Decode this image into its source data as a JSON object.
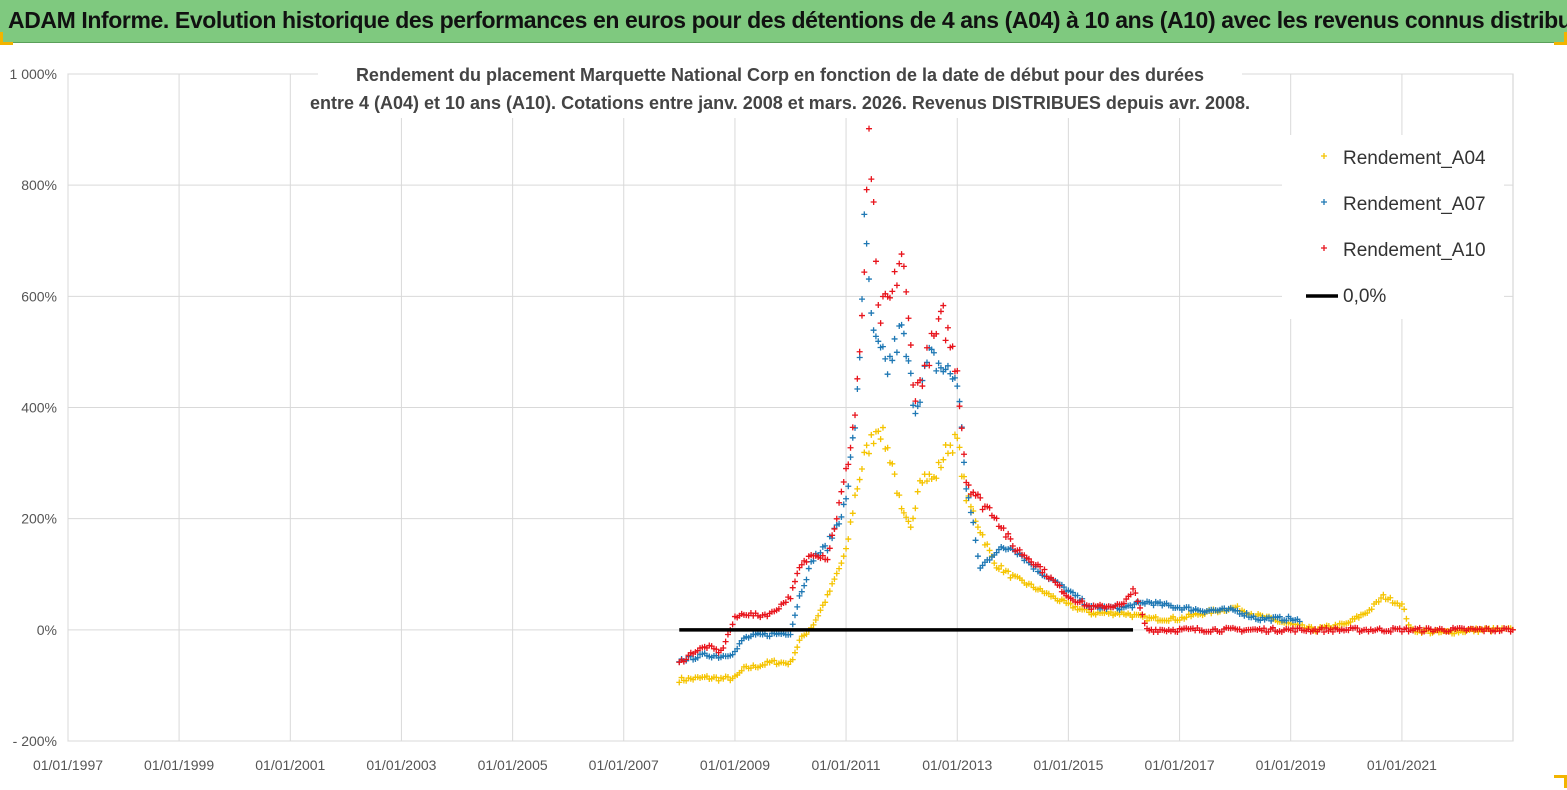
{
  "header": {
    "title": "ADAM Informe. Evolution historique des performances en euros pour des détentions de 4 ans (A04) à 10 ans (A10) avec les revenus connus distribués"
  },
  "chart_data": {
    "type": "scatter",
    "title_lines": [
      "Rendement du placement Marquette National Corp en fonction de la date de début pour des durées",
      "entre 4 (A04) et 10 ans (A10). Cotations entre janv. 2008 et mars. 2026. Revenus DISTRIBUES depuis avr. 2008."
    ],
    "xlabel": "",
    "ylabel": "",
    "x_ticks": [
      "01/01/1997",
      "01/01/1999",
      "01/01/2001",
      "01/01/2003",
      "01/01/2005",
      "01/01/2007",
      "01/01/2009",
      "01/01/2011",
      "01/01/2013",
      "01/01/2015",
      "01/01/2017",
      "01/01/2019",
      "01/01/2021"
    ],
    "x_range": [
      "1997-01-01",
      "2023-01-01"
    ],
    "y_ticks": [
      -200,
      0,
      200,
      400,
      600,
      800,
      1000
    ],
    "y_tick_labels": [
      "- 200%",
      "0%",
      "200%",
      "400%",
      "600%",
      "800%",
      "1 000%"
    ],
    "ylim": [
      -200,
      1000
    ],
    "grid": true,
    "legend_position": "top-right",
    "series": [
      {
        "name": "Rendement_A04",
        "color": "#f5c400",
        "marker": "+",
        "points": [
          [
            "2008-01-01",
            -90
          ],
          [
            "2008-04-01",
            -88
          ],
          [
            "2008-07-01",
            -86
          ],
          [
            "2008-10-01",
            -88
          ],
          [
            "2009-01-01",
            -87
          ],
          [
            "2009-03-01",
            -70
          ],
          [
            "2009-06-01",
            -65
          ],
          [
            "2009-09-01",
            -58
          ],
          [
            "2010-01-01",
            -60
          ],
          [
            "2010-03-01",
            -20
          ],
          [
            "2010-06-01",
            10
          ],
          [
            "2010-09-01",
            60
          ],
          [
            "2011-01-01",
            140
          ],
          [
            "2011-03-01",
            240
          ],
          [
            "2011-05-01",
            310
          ],
          [
            "2011-08-01",
            370
          ],
          [
            "2011-11-01",
            300
          ],
          [
            "2012-01-01",
            210
          ],
          [
            "2012-03-01",
            180
          ],
          [
            "2012-05-01",
            280
          ],
          [
            "2012-08-01",
            270
          ],
          [
            "2012-11-01",
            330
          ],
          [
            "2013-01-01",
            340
          ],
          [
            "2013-03-01",
            240
          ],
          [
            "2013-06-01",
            180
          ],
          [
            "2013-09-01",
            120
          ],
          [
            "2014-01-01",
            95
          ],
          [
            "2014-06-01",
            75
          ],
          [
            "2015-01-01",
            45
          ],
          [
            "2015-06-01",
            30
          ],
          [
            "2016-01-01",
            30
          ],
          [
            "2016-06-01",
            20
          ],
          [
            "2017-01-01",
            20
          ],
          [
            "2017-06-01",
            30
          ],
          [
            "2018-01-01",
            40
          ],
          [
            "2018-06-01",
            25
          ],
          [
            "2019-01-01",
            10
          ],
          [
            "2019-06-01",
            0
          ],
          [
            "2020-01-01",
            10
          ],
          [
            "2020-06-01",
            35
          ],
          [
            "2020-09-01",
            60
          ],
          [
            "2021-01-01",
            45
          ],
          [
            "2021-03-01",
            0
          ],
          [
            "2021-09-01",
            -5
          ],
          [
            "2022-06-01",
            0
          ],
          [
            "2022-12-31",
            0
          ]
        ]
      },
      {
        "name": "Rendement_A07",
        "color": "#1f78b4",
        "marker": "+",
        "points": [
          [
            "2008-01-01",
            -55
          ],
          [
            "2008-04-01",
            -50
          ],
          [
            "2008-07-01",
            -45
          ],
          [
            "2008-10-01",
            -48
          ],
          [
            "2009-01-01",
            -40
          ],
          [
            "2009-03-01",
            -15
          ],
          [
            "2009-06-01",
            -10
          ],
          [
            "2009-09-01",
            -8
          ],
          [
            "2010-01-01",
            -5
          ],
          [
            "2010-03-01",
            60
          ],
          [
            "2010-06-01",
            130
          ],
          [
            "2010-09-01",
            150
          ],
          [
            "2011-01-01",
            230
          ],
          [
            "2011-03-01",
            370
          ],
          [
            "2011-04-01",
            500
          ],
          [
            "2011-05-01",
            720
          ],
          [
            "2011-07-01",
            520
          ],
          [
            "2011-10-01",
            470
          ],
          [
            "2012-01-01",
            540
          ],
          [
            "2012-04-01",
            400
          ],
          [
            "2012-07-01",
            490
          ],
          [
            "2012-10-01",
            470
          ],
          [
            "2013-01-01",
            450
          ],
          [
            "2013-03-01",
            260
          ],
          [
            "2013-06-01",
            110
          ],
          [
            "2013-09-01",
            140
          ],
          [
            "2014-01-01",
            150
          ],
          [
            "2014-06-01",
            110
          ],
          [
            "2015-01-01",
            70
          ],
          [
            "2015-06-01",
            40
          ],
          [
            "2016-01-01",
            40
          ],
          [
            "2016-06-01",
            50
          ],
          [
            "2017-01-01",
            40
          ],
          [
            "2017-06-01",
            35
          ],
          [
            "2018-01-01",
            35
          ],
          [
            "2018-06-01",
            20
          ],
          [
            "2019-01-01",
            20
          ],
          [
            "2019-03-01",
            15
          ]
        ]
      },
      {
        "name": "Rendement_A10",
        "color": "#e8141c",
        "marker": "+",
        "points": [
          [
            "2008-01-01",
            -60
          ],
          [
            "2008-04-01",
            -40
          ],
          [
            "2008-07-01",
            -30
          ],
          [
            "2008-10-01",
            -40
          ],
          [
            "2009-01-01",
            20
          ],
          [
            "2009-03-01",
            30
          ],
          [
            "2009-06-01",
            25
          ],
          [
            "2009-09-01",
            30
          ],
          [
            "2010-01-01",
            60
          ],
          [
            "2010-03-01",
            110
          ],
          [
            "2010-06-01",
            140
          ],
          [
            "2010-09-01",
            130
          ],
          [
            "2011-01-01",
            280
          ],
          [
            "2011-03-01",
            390
          ],
          [
            "2011-05-01",
            620
          ],
          [
            "2011-06-01",
            910
          ],
          [
            "2011-08-01",
            560
          ],
          [
            "2011-11-01",
            600
          ],
          [
            "2012-01-01",
            680
          ],
          [
            "2012-04-01",
            420
          ],
          [
            "2012-07-01",
            500
          ],
          [
            "2012-10-01",
            560
          ],
          [
            "2013-01-01",
            470
          ],
          [
            "2013-03-01",
            270
          ],
          [
            "2013-06-01",
            230
          ],
          [
            "2013-09-01",
            210
          ],
          [
            "2014-01-01",
            150
          ],
          [
            "2014-06-01",
            120
          ],
          [
            "2015-01-01",
            60
          ],
          [
            "2015-06-01",
            40
          ],
          [
            "2016-01-01",
            45
          ],
          [
            "2016-03-01",
            75
          ],
          [
            "2016-06-01",
            0
          ],
          [
            "2017-01-01",
            0
          ],
          [
            "2018-01-01",
            0
          ],
          [
            "2019-01-01",
            0
          ],
          [
            "2020-01-01",
            0
          ],
          [
            "2021-01-01",
            0
          ],
          [
            "2022-01-01",
            0
          ],
          [
            "2022-12-31",
            0
          ]
        ]
      },
      {
        "name": "0,0%",
        "color": "#000000",
        "marker": "line",
        "points": [
          [
            "2008-01-01",
            0
          ],
          [
            "2016-03-01",
            0
          ]
        ]
      }
    ]
  }
}
